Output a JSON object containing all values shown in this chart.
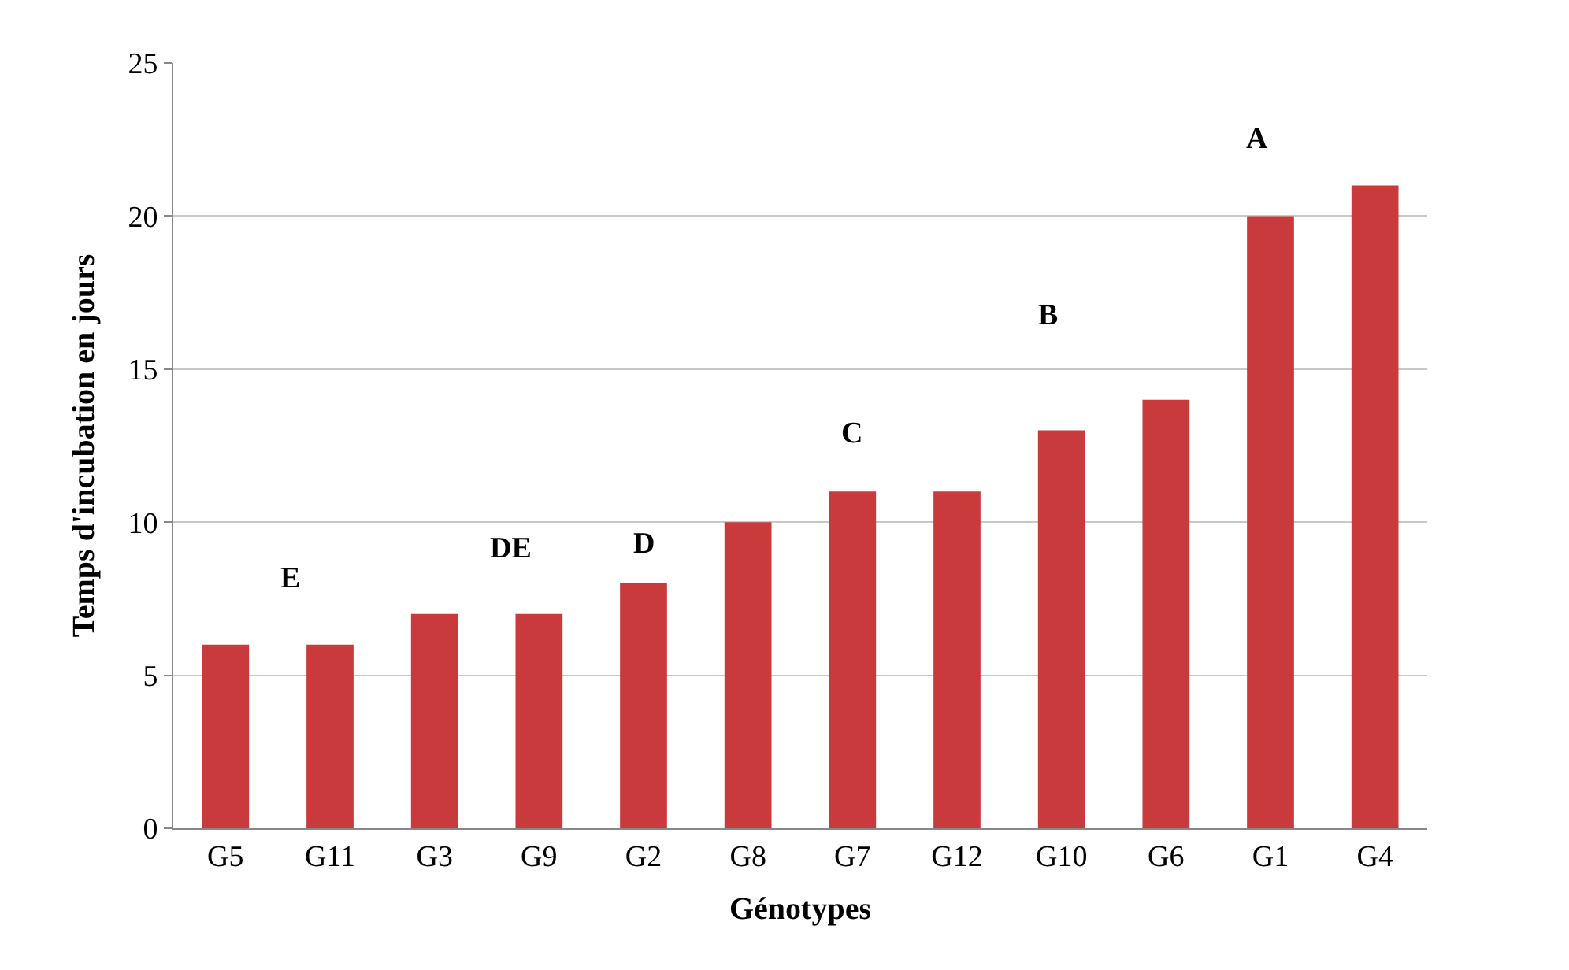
{
  "chart_data": {
    "type": "bar",
    "xlabel": "Génotypes",
    "ylabel": "Temps d'incubation en jours",
    "categories": [
      "G5",
      "G11",
      "G3",
      "G9",
      "G2",
      "G8",
      "G7",
      "G12",
      "G10",
      "G6",
      "G1",
      "G4"
    ],
    "values": [
      6,
      6,
      7,
      7,
      8,
      10,
      11,
      11,
      13,
      14,
      20,
      21
    ],
    "color": "#c83a3c",
    "ylim": [
      0,
      25
    ],
    "yticks": [
      0,
      5,
      10,
      15,
      20,
      25
    ],
    "grid": "y",
    "annotations": [
      "E",
      "DE",
      "D",
      "C",
      "B",
      "A"
    ]
  }
}
